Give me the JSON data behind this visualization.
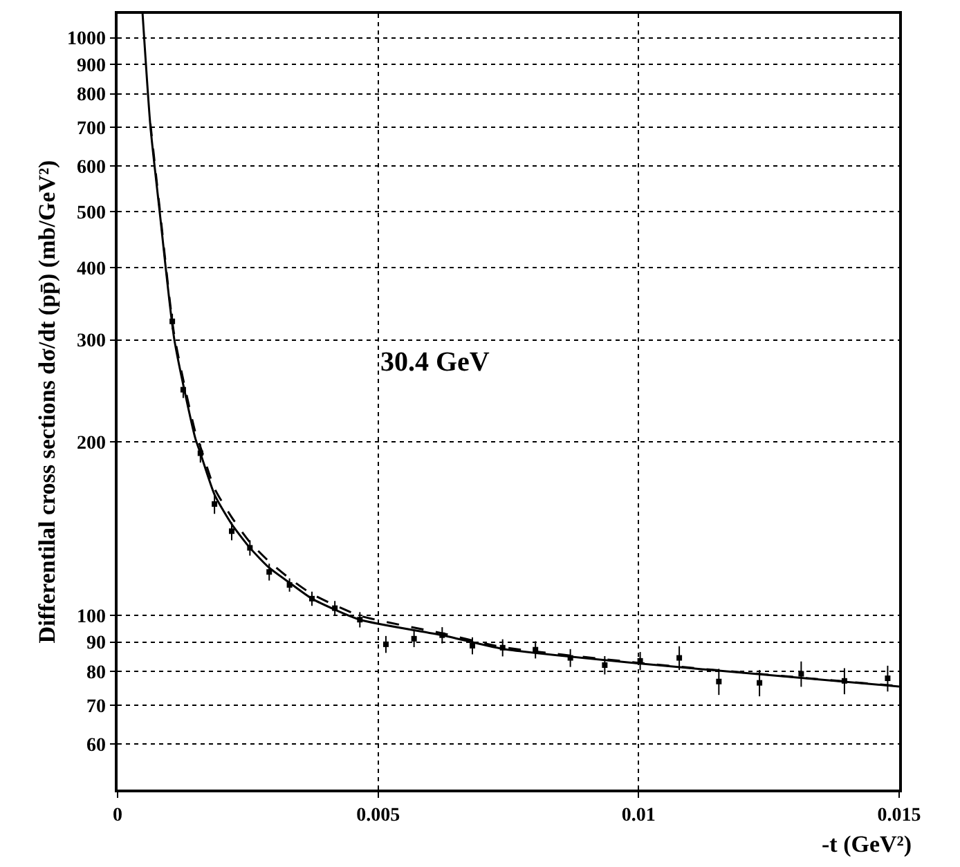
{
  "chart_data": {
    "type": "scatter",
    "xlabel": "-t (GeV²)",
    "ylabel": "Differentilal cross sections dσ/dt (pp̄) (mb/GeV²)",
    "annotations": [
      "30.4 GeV"
    ],
    "log": "y",
    "grid": true,
    "xlim": [
      0,
      0.015
    ],
    "xticks": [
      0,
      0.005,
      0.01,
      0.015
    ],
    "ylim": [
      50,
      1100
    ],
    "yticks": [
      60,
      70,
      80,
      90,
      100,
      200,
      300,
      400,
      500,
      600,
      700,
      800,
      900,
      1000
    ],
    "series": [
      {
        "marker": "square",
        "color": "#000000",
        "x": [
          0.00105,
          0.00126,
          0.00159,
          0.00186,
          0.00219,
          0.00254,
          0.00291,
          0.0033,
          0.00373,
          0.00417,
          0.00465,
          0.00515,
          0.00569,
          0.00623,
          0.00681,
          0.00739,
          0.00802,
          0.00869,
          0.00935,
          0.01003,
          0.01078,
          0.01154,
          0.01232,
          0.01312,
          0.01395,
          0.01478
        ],
        "values": [
          323,
          246,
          191,
          156,
          140,
          131,
          119,
          113,
          107,
          103,
          98.4,
          89.2,
          91.2,
          92.5,
          88.7,
          88.0,
          87.3,
          84.5,
          82.1,
          83.5,
          84.5,
          76.9,
          76.5,
          79.3,
          77.1,
          77.9
        ],
        "errors": [
          10,
          8,
          7,
          6,
          5,
          4,
          4,
          3,
          3,
          3,
          3,
          3,
          3,
          3,
          3,
          3,
          3,
          3,
          3,
          3,
          4,
          4,
          4,
          4,
          4,
          4
        ]
      },
      {
        "type": "line",
        "line_style": "solid",
        "marker": "none",
        "color": "#000000",
        "x": [
          0.00048,
          0.00063,
          0.00081,
          0.00109,
          0.00149,
          0.00159,
          0.00186,
          0.00219,
          0.00254,
          0.00291,
          0.0033,
          0.00373,
          0.00465,
          0.00623,
          0.00739,
          0.01003,
          0.01154,
          0.015
        ],
        "values": [
          1100,
          703,
          498,
          300,
          203,
          191,
          162,
          144,
          131,
          121,
          114,
          107,
          98.4,
          92.5,
          87.6,
          82.6,
          80.3,
          75.4
        ]
      },
      {
        "type": "line",
        "line_style": "dashed",
        "marker": "none",
        "color": "#000000",
        "x": [
          0.00063,
          0.00081,
          0.00109,
          0.00149,
          0.00159,
          0.00186,
          0.00219,
          0.00254,
          0.00291,
          0.0033,
          0.00373,
          0.00465,
          0.00623,
          0.00739,
          0.01003,
          0.015
        ],
        "values": [
          710,
          505,
          305,
          208,
          196,
          166,
          148,
          134,
          124,
          116,
          109,
          100,
          93.2,
          88.2,
          82.8,
          75.5
        ]
      }
    ]
  }
}
